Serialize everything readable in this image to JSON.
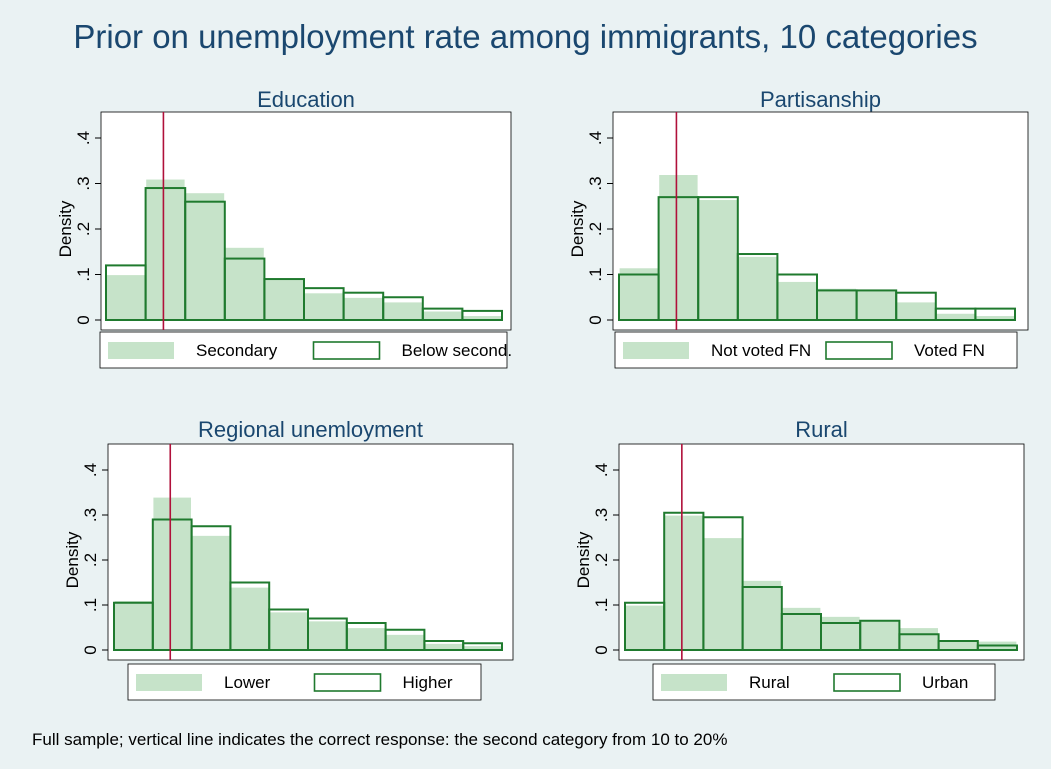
{
  "title": "Prior on unemployment rate among immigrants, 10 categories",
  "note": "Full sample; vertical line indicates the correct response: the second category from 10 to 20%",
  "colors": {
    "background": "#eaf2f3",
    "plot_background": "#ffffff",
    "title": "#1a476f",
    "filled_bar": "#c6e3c9",
    "outline_bar": "#1f7a2e",
    "reference_line": "#b0103a"
  },
  "chart_data": [
    {
      "type": "bar",
      "title": "Education",
      "ylabel": "Density",
      "ylim": [
        0,
        0.4
      ],
      "yticks": [
        0,
        0.1,
        0.2,
        0.3,
        0.4
      ],
      "ytick_labels": [
        "0",
        ".1",
        ".2",
        ".3",
        ".4"
      ],
      "grid": false,
      "bins": 10,
      "reference_bin": 2,
      "legend_position": "bottom",
      "series": [
        {
          "name": "Secondary",
          "style": "filled",
          "values": [
            0.1,
            0.31,
            0.28,
            0.16,
            0.09,
            0.06,
            0.05,
            0.04,
            0.02,
            0.01
          ]
        },
        {
          "name": "Below second.",
          "style": "outline",
          "values": [
            0.12,
            0.29,
            0.26,
            0.135,
            0.09,
            0.07,
            0.06,
            0.05,
            0.025,
            0.02
          ]
        }
      ]
    },
    {
      "type": "bar",
      "title": "Partisanship",
      "ylabel": "Density",
      "ylim": [
        0,
        0.4
      ],
      "yticks": [
        0,
        0.1,
        0.2,
        0.3,
        0.4
      ],
      "ytick_labels": [
        "0",
        ".1",
        ".2",
        ".3",
        ".4"
      ],
      "grid": false,
      "bins": 10,
      "reference_bin": 2,
      "legend_position": "bottom",
      "series": [
        {
          "name": "Not voted FN",
          "style": "filled",
          "values": [
            0.115,
            0.32,
            0.265,
            0.14,
            0.085,
            0.07,
            0.065,
            0.04,
            0.015,
            0.01
          ]
        },
        {
          "name": "Voted FN",
          "style": "outline",
          "values": [
            0.1,
            0.27,
            0.27,
            0.145,
            0.1,
            0.065,
            0.065,
            0.06,
            0.025,
            0.025
          ]
        }
      ]
    },
    {
      "type": "bar",
      "title": "Regional unemloyment",
      "ylabel": "Density",
      "ylim": [
        0,
        0.4
      ],
      "yticks": [
        0,
        0.1,
        0.2,
        0.3,
        0.4
      ],
      "ytick_labels": [
        "0",
        ".1",
        ".2",
        ".3",
        ".4"
      ],
      "grid": false,
      "bins": 10,
      "reference_bin": 2,
      "legend_position": "bottom",
      "series": [
        {
          "name": "Lower",
          "style": "filled",
          "values": [
            0.11,
            0.34,
            0.255,
            0.14,
            0.085,
            0.065,
            0.05,
            0.035,
            0.015,
            0.01
          ]
        },
        {
          "name": "Higher",
          "style": "outline",
          "values": [
            0.105,
            0.29,
            0.275,
            0.15,
            0.09,
            0.07,
            0.06,
            0.045,
            0.02,
            0.015
          ]
        }
      ]
    },
    {
      "type": "bar",
      "title": "Rural",
      "ylabel": "Density",
      "ylim": [
        0,
        0.4
      ],
      "yticks": [
        0,
        0.1,
        0.2,
        0.3,
        0.4
      ],
      "ytick_labels": [
        "0",
        ".1",
        ".2",
        ".3",
        ".4"
      ],
      "grid": false,
      "bins": 10,
      "reference_bin": 2,
      "legend_position": "bottom",
      "series": [
        {
          "name": "Rural",
          "style": "filled",
          "values": [
            0.1,
            0.3,
            0.25,
            0.155,
            0.095,
            0.075,
            0.065,
            0.05,
            0.02,
            0.02
          ]
        },
        {
          "name": "Urban",
          "style": "outline",
          "values": [
            0.105,
            0.305,
            0.295,
            0.14,
            0.08,
            0.06,
            0.065,
            0.035,
            0.02,
            0.01
          ]
        }
      ]
    }
  ]
}
